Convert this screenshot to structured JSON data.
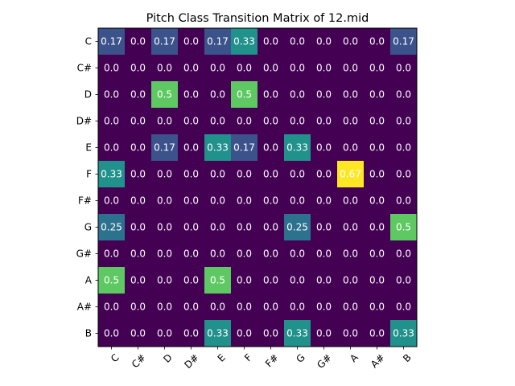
{
  "chart_data": {
    "type": "heatmap",
    "title": "Pitch Class Transition Matrix of 12.mid",
    "xlabel": "",
    "ylabel": "",
    "x_categories": [
      "C",
      "C#",
      "D",
      "D#",
      "E",
      "F",
      "F#",
      "G",
      "G#",
      "A",
      "A#",
      "B"
    ],
    "y_categories": [
      "C",
      "C#",
      "D",
      "D#",
      "E",
      "F",
      "F#",
      "G",
      "G#",
      "A",
      "A#",
      "B"
    ],
    "x_tick_rotation": 45,
    "value_range": [
      0,
      0.67
    ],
    "colormap": "viridis",
    "values": [
      [
        0.17,
        0.0,
        0.17,
        0.0,
        0.17,
        0.33,
        0.0,
        0.0,
        0.0,
        0.0,
        0.0,
        0.17
      ],
      [
        0.0,
        0.0,
        0.0,
        0.0,
        0.0,
        0.0,
        0.0,
        0.0,
        0.0,
        0.0,
        0.0,
        0.0
      ],
      [
        0.0,
        0.0,
        0.5,
        0.0,
        0.0,
        0.5,
        0.0,
        0.0,
        0.0,
        0.0,
        0.0,
        0.0
      ],
      [
        0.0,
        0.0,
        0.0,
        0.0,
        0.0,
        0.0,
        0.0,
        0.0,
        0.0,
        0.0,
        0.0,
        0.0
      ],
      [
        0.0,
        0.0,
        0.17,
        0.0,
        0.33,
        0.17,
        0.0,
        0.33,
        0.0,
        0.0,
        0.0,
        0.0
      ],
      [
        0.33,
        0.0,
        0.0,
        0.0,
        0.0,
        0.0,
        0.0,
        0.0,
        0.0,
        0.67,
        0.0,
        0.0
      ],
      [
        0.0,
        0.0,
        0.0,
        0.0,
        0.0,
        0.0,
        0.0,
        0.0,
        0.0,
        0.0,
        0.0,
        0.0
      ],
      [
        0.25,
        0.0,
        0.0,
        0.0,
        0.0,
        0.0,
        0.0,
        0.25,
        0.0,
        0.0,
        0.0,
        0.5
      ],
      [
        0.0,
        0.0,
        0.0,
        0.0,
        0.0,
        0.0,
        0.0,
        0.0,
        0.0,
        0.0,
        0.0,
        0.0
      ],
      [
        0.5,
        0.0,
        0.0,
        0.0,
        0.5,
        0.0,
        0.0,
        0.0,
        0.0,
        0.0,
        0.0,
        0.0
      ],
      [
        0.0,
        0.0,
        0.0,
        0.0,
        0.0,
        0.0,
        0.0,
        0.0,
        0.0,
        0.0,
        0.0,
        0.0
      ],
      [
        0.0,
        0.0,
        0.0,
        0.0,
        0.33,
        0.0,
        0.0,
        0.33,
        0.0,
        0.0,
        0.0,
        0.33
      ]
    ],
    "value_labels": [
      [
        "0.17",
        "0.0",
        "0.17",
        "0.0",
        "0.17",
        "0.33",
        "0.0",
        "0.0",
        "0.0",
        "0.0",
        "0.0",
        "0.17"
      ],
      [
        "0.0",
        "0.0",
        "0.0",
        "0.0",
        "0.0",
        "0.0",
        "0.0",
        "0.0",
        "0.0",
        "0.0",
        "0.0",
        "0.0"
      ],
      [
        "0.0",
        "0.0",
        "0.5",
        "0.0",
        "0.0",
        "0.5",
        "0.0",
        "0.0",
        "0.0",
        "0.0",
        "0.0",
        "0.0"
      ],
      [
        "0.0",
        "0.0",
        "0.0",
        "0.0",
        "0.0",
        "0.0",
        "0.0",
        "0.0",
        "0.0",
        "0.0",
        "0.0",
        "0.0"
      ],
      [
        "0.0",
        "0.0",
        "0.17",
        "0.0",
        "0.33",
        "0.17",
        "0.0",
        "0.33",
        "0.0",
        "0.0",
        "0.0",
        "0.0"
      ],
      [
        "0.33",
        "0.0",
        "0.0",
        "0.0",
        "0.0",
        "0.0",
        "0.0",
        "0.0",
        "0.0",
        "0.67",
        "0.0",
        "0.0"
      ],
      [
        "0.0",
        "0.0",
        "0.0",
        "0.0",
        "0.0",
        "0.0",
        "0.0",
        "0.0",
        "0.0",
        "0.0",
        "0.0",
        "0.0"
      ],
      [
        "0.25",
        "0.0",
        "0.0",
        "0.0",
        "0.0",
        "0.0",
        "0.0",
        "0.25",
        "0.0",
        "0.0",
        "0.0",
        "0.5"
      ],
      [
        "0.0",
        "0.0",
        "0.0",
        "0.0",
        "0.0",
        "0.0",
        "0.0",
        "0.0",
        "0.0",
        "0.0",
        "0.0",
        "0.0"
      ],
      [
        "0.5",
        "0.0",
        "0.0",
        "0.0",
        "0.5",
        "0.0",
        "0.0",
        "0.0",
        "0.0",
        "0.0",
        "0.0",
        "0.0"
      ],
      [
        "0.0",
        "0.0",
        "0.0",
        "0.0",
        "0.0",
        "0.0",
        "0.0",
        "0.0",
        "0.0",
        "0.0",
        "0.0",
        "0.0"
      ],
      [
        "0.0",
        "0.0",
        "0.0",
        "0.0",
        "0.33",
        "0.0",
        "0.0",
        "0.33",
        "0.0",
        "0.0",
        "0.0",
        "0.33"
      ]
    ],
    "colors": {
      "zero": "#440154",
      "v017": "#3b528b",
      "v025": "#2c728e",
      "v033": "#21918c",
      "v050": "#5ec962",
      "v067": "#fde725",
      "text": "#ffffff",
      "axis": "#000000"
    }
  }
}
